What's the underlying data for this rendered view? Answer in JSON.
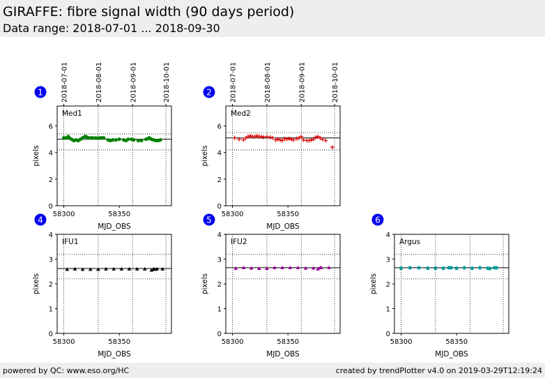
{
  "header": {
    "title": "GIRAFFE: fibre signal width (90 days period)",
    "subtitle": "Data range: 2018-07-01 ... 2018-09-30"
  },
  "footer": {
    "left": "powered by QC: www.eso.org/HC",
    "right": "created by trendPlotter v4.0 on 2019-03-29T12:19:24"
  },
  "date_axis": {
    "labels": [
      "2018-07-01",
      "2018-08-01",
      "2018-09-01",
      "2018-10-01"
    ],
    "mjd": [
      58300,
      58331,
      58362,
      58392
    ]
  },
  "chart_data": [
    {
      "type": "scatter",
      "badge": "1",
      "label": "Med1",
      "xlabel": "MJD_OBS",
      "ylabel": "pixels",
      "xlim": [
        58294,
        58397
      ],
      "ylim": [
        0,
        7.5
      ],
      "yticks": [
        0,
        2,
        4,
        6
      ],
      "xticks": [
        58300,
        58350
      ],
      "xtick_labels": [
        "58300",
        "58350"
      ],
      "ref_lines": [
        5.0
      ],
      "dotted_lines": [
        4.2,
        5.4
      ],
      "grid_x": [
        58300,
        58331,
        58362,
        58392
      ],
      "marker": "circle",
      "color": "#008000",
      "x": [
        58300,
        58302,
        58304,
        58305,
        58307,
        58309,
        58311,
        58313,
        58315,
        58317,
        58319,
        58320,
        58322,
        58324,
        58326,
        58329,
        58332,
        58334,
        58336,
        58340,
        58342,
        58344,
        58347,
        58350,
        58354,
        58356,
        58358,
        58361,
        58363,
        58367,
        58370,
        58374,
        58376,
        58377,
        58379,
        58381,
        58383,
        58385,
        58387
      ],
      "y": [
        5.1,
        5.1,
        5.2,
        5.1,
        5.0,
        4.9,
        4.95,
        4.9,
        5.0,
        5.1,
        5.2,
        5.2,
        5.1,
        5.1,
        5.1,
        5.1,
        5.1,
        5.1,
        5.1,
        4.95,
        4.9,
        4.95,
        4.95,
        5.0,
        4.95,
        4.9,
        5.0,
        5.0,
        4.95,
        4.9,
        4.9,
        5.0,
        5.05,
        5.1,
        5.0,
        4.95,
        4.9,
        4.9,
        4.95
      ]
    },
    {
      "type": "scatter",
      "badge": "2",
      "label": "Med2",
      "xlabel": "MJD_OBS",
      "ylabel": "pixels",
      "xlim": [
        58294,
        58397
      ],
      "ylim": [
        0,
        7.5
      ],
      "yticks": [
        0,
        2,
        4,
        6
      ],
      "xticks": [
        58300,
        58350
      ],
      "xtick_labels": [
        "58300",
        "58350"
      ],
      "ref_lines": [
        5.1
      ],
      "dotted_lines": [
        4.2,
        5.5
      ],
      "grid_x": [
        58300,
        58331,
        58362,
        58392
      ],
      "marker": "plus",
      "color": "#dd0000",
      "x": [
        58302,
        58306,
        58310,
        58312,
        58314,
        58316,
        58318,
        58320,
        58322,
        58324,
        58326,
        58328,
        58331,
        58334,
        58336,
        58339,
        58341,
        58343,
        58345,
        58347,
        58349,
        58351,
        58353,
        58355,
        58358,
        58360,
        58362,
        58364,
        58367,
        58369,
        58371,
        58373,
        58375,
        58377,
        58379,
        58381,
        58384,
        58390
      ],
      "y": [
        5.1,
        5.0,
        4.95,
        5.1,
        5.2,
        5.25,
        5.2,
        5.2,
        5.25,
        5.2,
        5.2,
        5.15,
        5.2,
        5.15,
        5.1,
        4.95,
        5.0,
        4.95,
        4.9,
        5.05,
        5.0,
        5.05,
        5.0,
        4.95,
        5.05,
        5.1,
        5.2,
        4.95,
        4.9,
        4.9,
        4.95,
        5.0,
        5.15,
        5.2,
        5.1,
        5.0,
        4.9,
        4.4
      ]
    },
    {
      "type": "scatter",
      "badge": "4",
      "label": "IFU1",
      "xlabel": "MJD_OBS",
      "ylabel": "pixels",
      "xlim": [
        58294,
        58397
      ],
      "ylim": [
        0,
        4
      ],
      "yticks": [
        0,
        1,
        2,
        3,
        4
      ],
      "xticks": [
        58300,
        58350
      ],
      "xtick_labels": [
        "58300",
        "58350"
      ],
      "ref_lines": [
        2.62
      ],
      "dotted_lines": [
        2.2,
        3.2
      ],
      "grid_x": [
        58300,
        58331,
        58362,
        58392
      ],
      "marker": "triangle",
      "color": "#000000",
      "x": [
        58303,
        58310,
        58317,
        58324,
        58331,
        58338,
        58345,
        58352,
        58359,
        58366,
        58373,
        58379,
        58381,
        58382,
        58384,
        58389
      ],
      "y": [
        2.58,
        2.6,
        2.58,
        2.58,
        2.58,
        2.6,
        2.6,
        2.6,
        2.6,
        2.6,
        2.6,
        2.55,
        2.6,
        2.58,
        2.6,
        2.6
      ]
    },
    {
      "type": "scatter",
      "badge": "5",
      "label": "IFU2",
      "xlabel": "MJD_OBS",
      "ylabel": "pixels",
      "xlim": [
        58294,
        58397
      ],
      "ylim": [
        0,
        4
      ],
      "yticks": [
        0,
        1,
        2,
        3,
        4
      ],
      "xticks": [
        58300,
        58350
      ],
      "xtick_labels": [
        "58300",
        "58350"
      ],
      "ref_lines": [
        2.65
      ],
      "dotted_lines": [
        2.2,
        3.2
      ],
      "grid_x": [
        58300,
        58331,
        58362,
        58392
      ],
      "marker": "triangle",
      "color": "#990099",
      "x": [
        58303,
        58310,
        58317,
        58324,
        58331,
        58338,
        58345,
        58352,
        58359,
        58366,
        58373,
        58377,
        58379,
        58380,
        58387
      ],
      "y": [
        2.62,
        2.65,
        2.63,
        2.62,
        2.62,
        2.65,
        2.65,
        2.65,
        2.65,
        2.63,
        2.63,
        2.6,
        2.65,
        2.65,
        2.65
      ]
    },
    {
      "type": "scatter",
      "badge": "6",
      "label": "Argus",
      "xlabel": "MJD_OBS",
      "ylabel": "pixels",
      "xlim": [
        58294,
        58397
      ],
      "ylim": [
        0,
        4
      ],
      "yticks": [
        0,
        1,
        2,
        3,
        4
      ],
      "xticks": [
        58300,
        58350
      ],
      "xtick_labels": [
        "58300",
        "58350"
      ],
      "ref_lines": [
        2.65
      ],
      "dotted_lines": [
        2.2,
        3.2
      ],
      "grid_x": [
        58300,
        58331,
        58362,
        58392
      ],
      "marker": "circle",
      "color": "#009999",
      "x": [
        58300,
        58308,
        58316,
        58324,
        58331,
        58338,
        58343,
        58345,
        58350,
        58357,
        58364,
        58371,
        58378,
        58380,
        58384,
        58386
      ],
      "y": [
        2.63,
        2.65,
        2.65,
        2.63,
        2.63,
        2.63,
        2.65,
        2.65,
        2.63,
        2.65,
        2.63,
        2.65,
        2.63,
        2.62,
        2.65,
        2.65
      ]
    }
  ]
}
